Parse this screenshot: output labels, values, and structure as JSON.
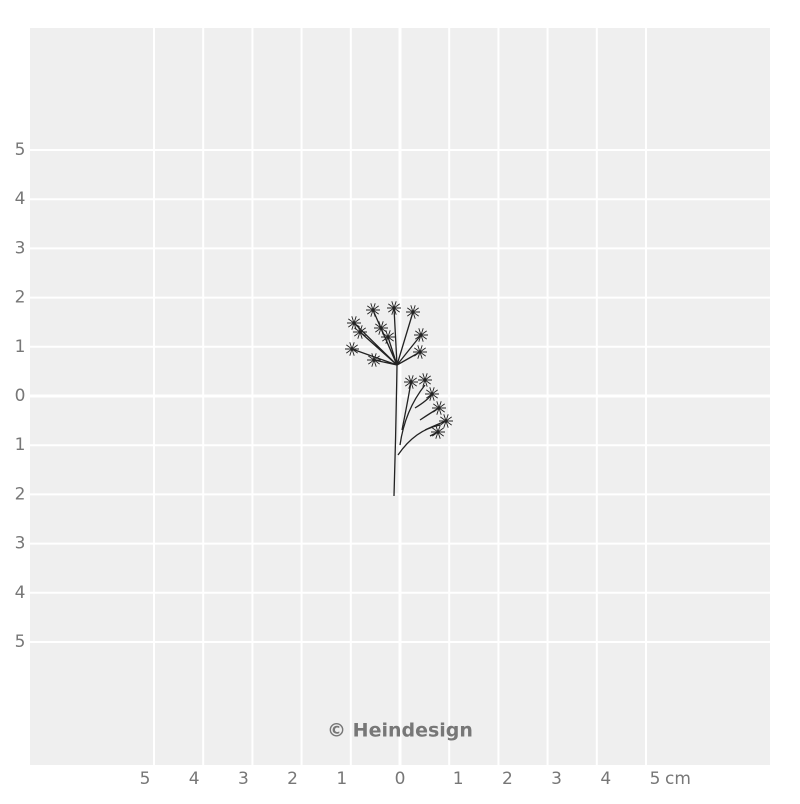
{
  "left_scale": [
    "5",
    "4",
    "3",
    "2",
    "1",
    "0",
    "1",
    "2",
    "3",
    "4",
    "5"
  ],
  "bottom_scale": [
    "5",
    "4",
    "3",
    "2",
    "1",
    "0",
    "1",
    "2",
    "3",
    "4",
    "5"
  ],
  "unit": "cm",
  "copyright": "© Heindesign"
}
